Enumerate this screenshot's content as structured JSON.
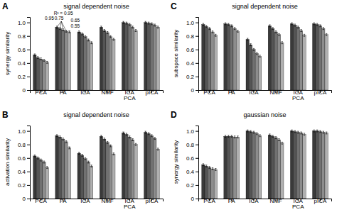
{
  "chart_data": [
    {
      "type": "bar",
      "title": "signal dependent noise",
      "panel_label": "A",
      "ylabel": "synergy similarity",
      "categories": [
        "PCA",
        "FA",
        "ICA",
        "NMF",
        "ICA\nPCA",
        "pICA"
      ],
      "series": [
        {
          "color": "#3a3a3a",
          "values": [
            0.52,
            0.93,
            0.86,
            0.93,
            1.0,
            1.0
          ],
          "errors": [
            0.015,
            0.015,
            0.015,
            0.015,
            0.015,
            0.015
          ]
        },
        {
          "color": "#555555",
          "values": [
            0.48,
            0.91,
            0.83,
            0.88,
            0.99,
            0.99
          ],
          "errors": [
            0.015,
            0.015,
            0.015,
            0.015,
            0.015,
            0.015
          ]
        },
        {
          "color": "#717171",
          "values": [
            0.46,
            0.89,
            0.79,
            0.85,
            0.97,
            0.98
          ],
          "errors": [
            0.015,
            0.015,
            0.015,
            0.015,
            0.015,
            0.015
          ]
        },
        {
          "color": "#8d8d8d",
          "values": [
            0.44,
            0.87,
            0.74,
            0.79,
            0.93,
            0.96
          ],
          "errors": [
            0.015,
            0.015,
            0.015,
            0.015,
            0.015,
            0.015
          ]
        },
        {
          "color": "#b0b0b0",
          "values": [
            0.41,
            0.86,
            0.7,
            0.75,
            0.88,
            0.93
          ],
          "errors": [
            0.015,
            0.015,
            0.015,
            0.015,
            0.015,
            0.015
          ]
        }
      ],
      "ylim": [
        0,
        1.08
      ],
      "yticks": [
        0,
        0.2,
        0.4,
        0.6,
        0.8,
        {
          "value": 1.0,
          "label": "1.0"
        }
      ],
      "annotations": [
        {
          "text": "R² = 0.95"
        },
        {
          "text": "0.95",
          "category": "FA",
          "series": 0
        },
        {
          "text": "0.75",
          "category": "FA",
          "series": 1
        },
        {
          "text": "0.65",
          "category": "FA",
          "series": 2
        },
        {
          "text": "0.55",
          "category": "FA",
          "series": 3
        }
      ]
    },
    {
      "type": "bar",
      "title": "signal dependent noise",
      "panel_label": "B",
      "ylabel": "activation similarity",
      "categories": [
        "PCA",
        "FA",
        "ICA",
        "NMF",
        "ICA\nPCA",
        "pICA"
      ],
      "series": [
        {
          "color": "#3a3a3a",
          "values": [
            0.63,
            0.93,
            0.67,
            0.92,
            0.97,
            0.98
          ],
          "errors": [
            0.015,
            0.015,
            0.015,
            0.015,
            0.015,
            0.015
          ]
        },
        {
          "color": "#555555",
          "values": [
            0.6,
            0.91,
            0.64,
            0.88,
            0.95,
            0.96
          ],
          "errors": [
            0.015,
            0.015,
            0.015,
            0.015,
            0.015,
            0.015
          ]
        },
        {
          "color": "#717171",
          "values": [
            0.57,
            0.88,
            0.59,
            0.83,
            0.91,
            0.93
          ],
          "errors": [
            0.015,
            0.015,
            0.015,
            0.015,
            0.015,
            0.015
          ]
        },
        {
          "color": "#8d8d8d",
          "values": [
            0.54,
            0.84,
            0.54,
            0.78,
            0.87,
            0.89
          ],
          "errors": [
            0.015,
            0.015,
            0.015,
            0.015,
            0.015,
            0.015
          ]
        },
        {
          "color": "#b0b0b0",
          "values": [
            0.46,
            0.75,
            0.48,
            0.66,
            0.8,
            0.73
          ],
          "errors": [
            0.015,
            0.015,
            0.015,
            0.015,
            0.015,
            0.015
          ]
        }
      ],
      "ylim": [
        0,
        1.08
      ],
      "yticks": [
        0,
        0.2,
        0.4,
        0.6,
        0.8,
        {
          "value": 1.0,
          "label": "1.0"
        }
      ]
    },
    {
      "type": "bar",
      "title": "signal dependent noise",
      "panel_label": "C",
      "ylabel": "subspace similarity",
      "categories": [
        "PCA",
        "FA",
        "ICA",
        "NMF",
        "ICA\nPCA",
        "pICA"
      ],
      "series": [
        {
          "color": "#3a3a3a",
          "values": [
            0.97,
            0.98,
            0.75,
            0.95,
            0.98,
            0.98
          ],
          "errors": [
            0.015,
            0.015,
            0.015,
            0.015,
            0.015,
            0.015
          ]
        },
        {
          "color": "#555555",
          "values": [
            0.94,
            0.97,
            0.67,
            0.91,
            0.96,
            0.97
          ],
          "errors": [
            0.015,
            0.015,
            0.015,
            0.015,
            0.015,
            0.015
          ]
        },
        {
          "color": "#717171",
          "values": [
            0.91,
            0.95,
            0.6,
            0.86,
            0.93,
            0.95
          ],
          "errors": [
            0.015,
            0.015,
            0.015,
            0.015,
            0.015,
            0.015
          ]
        },
        {
          "color": "#8d8d8d",
          "values": [
            0.86,
            0.91,
            0.54,
            0.82,
            0.88,
            0.91
          ],
          "errors": [
            0.015,
            0.015,
            0.015,
            0.015,
            0.015,
            0.015
          ]
        },
        {
          "color": "#b0b0b0",
          "values": [
            0.81,
            0.87,
            0.5,
            0.7,
            0.81,
            0.82
          ],
          "errors": [
            0.015,
            0.015,
            0.015,
            0.015,
            0.015,
            0.015
          ]
        }
      ],
      "ylim": [
        0,
        1.08
      ],
      "yticks": [
        0,
        0.2,
        0.4,
        0.6,
        0.8,
        {
          "value": 1.0,
          "label": "1.0"
        }
      ]
    },
    {
      "type": "bar",
      "title": "gaussian noise",
      "panel_label": "D",
      "ylabel": "synergy similarity",
      "categories": [
        "PCA",
        "FA",
        "ICA",
        "NMF",
        "ICA\nPCA",
        "pICA"
      ],
      "series": [
        {
          "color": "#3a3a3a",
          "values": [
            0.5,
            0.92,
            1.0,
            0.94,
            1.0,
            1.0
          ],
          "errors": [
            0.015,
            0.015,
            0.015,
            0.015,
            0.015,
            0.015
          ]
        },
        {
          "color": "#555555",
          "values": [
            0.48,
            0.92,
            0.99,
            0.92,
            0.99,
            1.0
          ],
          "errors": [
            0.015,
            0.015,
            0.015,
            0.015,
            0.015,
            0.015
          ]
        },
        {
          "color": "#717171",
          "values": [
            0.46,
            0.92,
            0.98,
            0.9,
            0.98,
            0.99
          ],
          "errors": [
            0.015,
            0.015,
            0.015,
            0.015,
            0.015,
            0.015
          ]
        },
        {
          "color": "#8d8d8d",
          "values": [
            0.44,
            0.91,
            0.96,
            0.87,
            0.97,
            0.98
          ],
          "errors": [
            0.015,
            0.015,
            0.015,
            0.015,
            0.015,
            0.015
          ]
        },
        {
          "color": "#b0b0b0",
          "values": [
            0.43,
            0.91,
            0.93,
            0.82,
            0.95,
            0.97
          ],
          "errors": [
            0.015,
            0.015,
            0.015,
            0.015,
            0.015,
            0.015
          ]
        }
      ],
      "ylim": [
        0,
        1.08
      ],
      "yticks": [
        0,
        0.2,
        0.4,
        0.6,
        0.8,
        {
          "value": 1.0,
          "label": "1.0"
        }
      ]
    }
  ]
}
